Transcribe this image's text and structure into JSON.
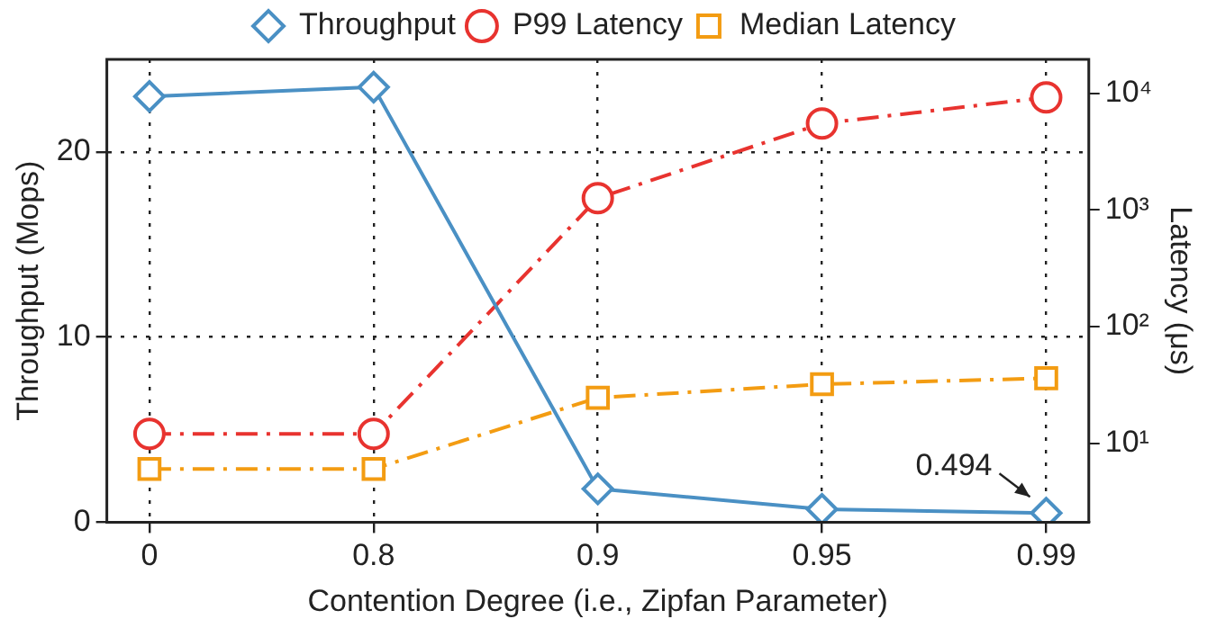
{
  "chart_data": {
    "type": "line",
    "xlabel": "Contention Degree (i.e., Zipfan Parameter)",
    "ylabel": "Throughput (Mops)",
    "y2label": "Latency (μs)",
    "categories": [
      "0",
      "0.8",
      "0.9",
      "0.95",
      "0.99"
    ],
    "series": [
      {
        "name": "Throughput",
        "color": "#4a90c4",
        "values": [
          23,
          23.5,
          1.8,
          0.7,
          0.494
        ],
        "marker": "diamond",
        "line_style": "solid"
      },
      {
        "name": "P99 Latency",
        "color": "#e8332f",
        "values": [
          12,
          12,
          1260,
          5500,
          9200
        ],
        "axis": "y2",
        "marker": "circle",
        "line_style": "dashed"
      },
      {
        "name": "Median Latency",
        "color": "#f39c12",
        "values": [
          6,
          6,
          24.5,
          32,
          36
        ],
        "axis": "y2",
        "marker": "square",
        "line_style": "dashed"
      }
    ],
    "ylim": [
      0,
      25
    ],
    "yticks": [
      0,
      10,
      20
    ],
    "y2lim": [
      2.1,
      19500
    ],
    "y2ticks": [
      {
        "value": 10,
        "label": "10¹"
      },
      {
        "value": 100,
        "label": "10²"
      },
      {
        "value": 1000,
        "label": "10³"
      },
      {
        "value": 10000,
        "label": "10⁴"
      }
    ],
    "log": "y2",
    "grid": true,
    "legend": "top",
    "annotations": [
      {
        "text": "0.494",
        "x": "0.99",
        "y": 0.494
      }
    ]
  }
}
